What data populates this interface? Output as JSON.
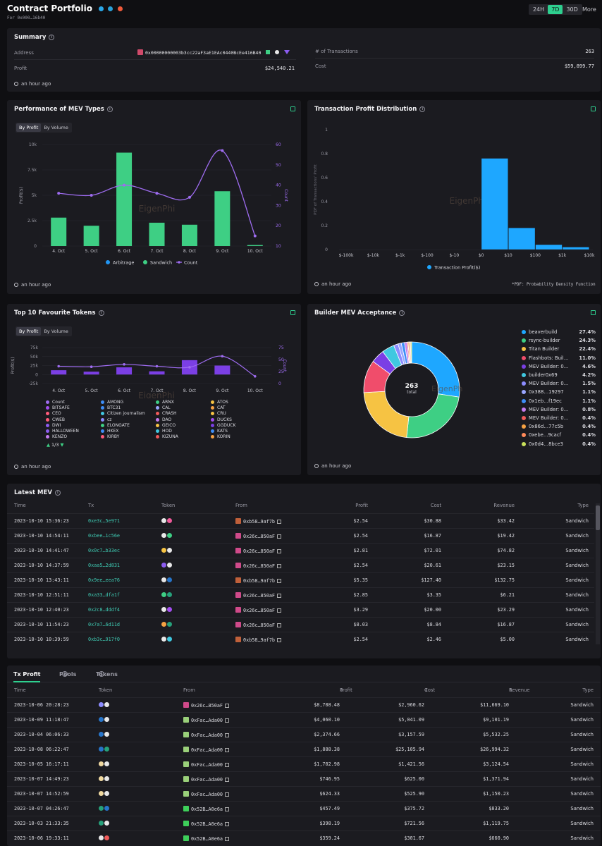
{
  "header": {
    "title": "Contract Portfolio",
    "subtitle": "For 0x000…16b40",
    "ranges": [
      "24H",
      "7D",
      "30D"
    ],
    "active_range": "7D",
    "more": "More"
  },
  "summary": {
    "title": "Summary",
    "address_label": "Address",
    "address_value": "0x00000000003b3cc22aF3aE1EAc0440BcEe416B40",
    "profit_label": "Profit",
    "profit_value": "$24,540.21",
    "tx_label": "# of Transactions",
    "tx_value": "263",
    "cost_label": "Cost",
    "cost_value": "$59,899.77",
    "ago": "an hour ago"
  },
  "mev_types": {
    "title": "Performance of MEV Types",
    "tabs": [
      "By Profit",
      "By Volume"
    ],
    "ago": "an hour ago",
    "watermark": "EigenPhi",
    "chart_data": {
      "type": "bar",
      "categories": [
        "4. Oct",
        "5. Oct",
        "6. Oct",
        "7. Oct",
        "8. Oct",
        "9. Oct",
        "10. Oct"
      ],
      "ylabel": "Profit($)",
      "y2label": "Count",
      "yticks": [
        "0",
        "2.5k",
        "5k",
        "7.5k",
        "10k"
      ],
      "ylim": [
        0,
        10000
      ],
      "y2ticks": [
        "10",
        "20",
        "30",
        "40",
        "50",
        "60"
      ],
      "y2lim": [
        10,
        60
      ],
      "series": [
        {
          "name": "Arbitrage",
          "color": "#2196f3",
          "values": [
            0,
            0,
            0,
            0,
            0,
            0,
            0
          ]
        },
        {
          "name": "Sandwich",
          "color": "#3ecf84",
          "values": [
            2800,
            2000,
            9200,
            2300,
            2100,
            5400,
            100
          ]
        },
        {
          "name": "Count",
          "color": "#9e6cf0",
          "values": [
            36,
            35,
            40,
            36,
            34,
            57,
            15
          ]
        }
      ]
    }
  },
  "tx_dist": {
    "title": "Transaction Profit Distribution",
    "ago": "an hour ago",
    "footnote": "*PDF: Probability Density Function",
    "watermark": "EigenPhi",
    "chart_data": {
      "type": "bar",
      "categories": [
        "$-100k",
        "$-10k",
        "$-1k",
        "$-100",
        "$-10",
        "$0",
        "$10",
        "$100",
        "$1k",
        "$10k"
      ],
      "ylabel": "PDF of Transactions' Profit",
      "yticks": [
        "0",
        "0.2",
        "0.4",
        "0.6",
        "0.8",
        "1"
      ],
      "ylim": [
        0,
        1
      ],
      "series": [
        {
          "name": "Transaction Profit($)",
          "color": "#1ea7ff",
          "values": [
            0,
            0,
            0,
            0,
            0,
            0.76,
            0.18,
            0.04,
            0.02,
            0
          ]
        }
      ]
    }
  },
  "tokens": {
    "title": "Top 10 Favourite Tokens",
    "tabs": [
      "By Profit",
      "By Volume"
    ],
    "ago": "an hour ago",
    "pager": "1/3",
    "watermark": "EigenPhi",
    "chart_data": {
      "type": "bar",
      "categories": [
        "4. Oct",
        "5. Oct",
        "6. Oct",
        "7. Oct",
        "8. Oct",
        "9. Oct",
        "10. Oct"
      ],
      "ylabel": "Profit($)",
      "y2label": "Count",
      "yticks": [
        "-25k",
        "0",
        "25k",
        "50k",
        "75k"
      ],
      "ylim": [
        -25000,
        75000
      ],
      "y2ticks": [
        "0",
        "25",
        "50",
        "75"
      ],
      "y2lim": [
        0,
        75
      ],
      "series": [
        {
          "name": "Count",
          "color": "#9e6cf0",
          "values": [
            36,
            35,
            40,
            36,
            34,
            57,
            15
          ]
        },
        {
          "name": "Profit",
          "color": "#7b3fe4",
          "values": [
            12000,
            8000,
            20000,
            9000,
            40000,
            25000,
            0
          ]
        }
      ]
    },
    "legend": [
      {
        "name": "Count",
        "color": "#9e6cf0"
      },
      {
        "name": "AMONG",
        "color": "#3e8ef7"
      },
      {
        "name": "ARNX",
        "color": "#3ecf84"
      },
      {
        "name": "ATOS",
        "color": "#f6c343"
      },
      {
        "name": "BITSAFE",
        "color": "#a34ef0"
      },
      {
        "name": "BTC31",
        "color": "#3e8ef7"
      },
      {
        "name": "CAL",
        "color": "#9aa6ff"
      },
      {
        "name": "CAT",
        "color": "#f6a243"
      },
      {
        "name": "CEO",
        "color": "#ff5b7a"
      },
      {
        "name": "Citizen journalism",
        "color": "#40c8e0"
      },
      {
        "name": "CRASH",
        "color": "#f05a5a"
      },
      {
        "name": "CRU",
        "color": "#f6c343"
      },
      {
        "name": "CWEB",
        "color": "#ff5b7a"
      },
      {
        "name": "cz",
        "color": "#8c8cff"
      },
      {
        "name": "DAO",
        "color": "#c57cf0"
      },
      {
        "name": "DUCKS",
        "color": "#a34ef0"
      },
      {
        "name": "DWI",
        "color": "#8c5cf0"
      },
      {
        "name": "ELONGATE",
        "color": "#3ecf84"
      },
      {
        "name": "GEICO",
        "color": "#f6c343"
      },
      {
        "name": "GGDUCK",
        "color": "#7b3fe4"
      },
      {
        "name": "HALLOWEEN",
        "color": "#8c5cf0"
      },
      {
        "name": "HKEX",
        "color": "#3e8ef7"
      },
      {
        "name": "HOD",
        "color": "#40c8e0"
      },
      {
        "name": "KATS",
        "color": "#3e8ef7"
      },
      {
        "name": "KENZO",
        "color": "#c57cf0"
      },
      {
        "name": "KIRBY",
        "color": "#ff5b7a"
      },
      {
        "name": "KIZUNA",
        "color": "#f05a5a"
      },
      {
        "name": "KORIN",
        "color": "#f6a243"
      }
    ]
  },
  "builders": {
    "title": "Builder MEV Acceptance",
    "ago": "an hour ago",
    "total_value": "263",
    "total_label": "total",
    "watermark": "EigenPhi",
    "chart_data": {
      "type": "pie",
      "labels": [
        "beaverbuild",
        "rsync-builder",
        "Titan Builder",
        "Flashbots: Buil…",
        "MEV Builder: 0…",
        "builder0x69",
        "MEV Builder: 0…",
        "0x388…19297",
        "0x1eb…f19ec",
        "MEV Builder: 0…",
        "MEV Builder: 0…",
        "0x86d…77c5b",
        "0xebe…9cacf",
        "0x0d4…8bce3"
      ],
      "values": [
        27.4,
        24.3,
        22.4,
        11.0,
        4.6,
        4.2,
        1.5,
        1.1,
        1.1,
        0.8,
        0.4,
        0.4,
        0.4,
        0.4
      ],
      "display": [
        "27.4%",
        "24.3%",
        "22.4%",
        "11.0%",
        "4.6%",
        "4.2%",
        "1.5%",
        "1.1%",
        "1.1%",
        "0.8%",
        "0.4%",
        "0.4%",
        "0.4%",
        "0.4%"
      ],
      "colors": [
        "#1ea7ff",
        "#3ecf84",
        "#f6c343",
        "#f04d6b",
        "#7b3fe4",
        "#40c8e0",
        "#8c8cff",
        "#9aa6ff",
        "#3e8ef7",
        "#c57cf0",
        "#f05a5a",
        "#f6a243",
        "#ff8a5a",
        "#c8e05a"
      ]
    }
  },
  "latest": {
    "title": "Latest MEV",
    "columns": [
      "Time",
      "Tx",
      "Token",
      "From",
      "Profit",
      "Cost",
      "Revenue",
      "Type"
    ],
    "rows": [
      {
        "time": "2023-10-10 15:36:23",
        "tx": "0xe3c…5e971",
        "from": "0xb58…9af7b",
        "profit": "$2.54",
        "cost": "$30.88",
        "revenue": "$33.42",
        "type": "Sandwich",
        "t1": "#e8e8e8",
        "t2": "#f05a9a",
        "av": "#c0603a"
      },
      {
        "time": "2023-10-10 14:54:11",
        "tx": "0xbee…1c56e",
        "from": "0x26c…850aF",
        "profit": "$2.54",
        "cost": "$16.87",
        "revenue": "$19.42",
        "type": "Sandwich",
        "t1": "#e8e8e8",
        "t2": "#3ecf84",
        "av": "#d04a8a"
      },
      {
        "time": "2023-10-10 14:41:47",
        "tx": "0x0c7…b33ec",
        "from": "0x26c…850aF",
        "profit": "$2.81",
        "cost": "$72.01",
        "revenue": "$74.82",
        "type": "Sandwich",
        "t1": "#f6c343",
        "t2": "#e8e8e8",
        "av": "#d04a8a"
      },
      {
        "time": "2023-10-10 14:37:59",
        "tx": "0xaa5…2d831",
        "from": "0x26c…850aF",
        "profit": "$2.54",
        "cost": "$20.61",
        "revenue": "$23.15",
        "type": "Sandwich",
        "t1": "#8c5cf0",
        "t2": "#e8e8e8",
        "av": "#d04a8a"
      },
      {
        "time": "2023-10-10 13:43:11",
        "tx": "0x9ee…eea76",
        "from": "0xb58…9af7b",
        "profit": "$5.35",
        "cost": "$127.40",
        "revenue": "$132.75",
        "type": "Sandwich",
        "t1": "#e8e8e8",
        "t2": "#2775ca",
        "av": "#c0603a"
      },
      {
        "time": "2023-10-10 12:51:11",
        "tx": "0xa33…dfa1f",
        "from": "0x26c…850aF",
        "profit": "$2.85",
        "cost": "$3.35",
        "revenue": "$6.21",
        "type": "Sandwich",
        "t1": "#3ecf84",
        "t2": "#26a17b",
        "av": "#d04a8a"
      },
      {
        "time": "2023-10-10 12:40:23",
        "tx": "0x2c8…dddf4",
        "from": "0x26c…850aF",
        "profit": "$3.29",
        "cost": "$20.00",
        "revenue": "$23.29",
        "type": "Sandwich",
        "t1": "#e8e8e8",
        "t2": "#a34ef0",
        "av": "#d04a8a"
      },
      {
        "time": "2023-10-10 11:54:23",
        "tx": "0x7a7…6d11d",
        "from": "0x26c…850aF",
        "profit": "$8.03",
        "cost": "$8.84",
        "revenue": "$16.87",
        "type": "Sandwich",
        "t1": "#f6a243",
        "t2": "#26a17b",
        "av": "#d04a8a"
      },
      {
        "time": "2023-10-10 10:39:59",
        "tx": "0xb3c…917f0",
        "from": "0xb58…9af7b",
        "profit": "$2.54",
        "cost": "$2.46",
        "revenue": "$5.00",
        "type": "Sandwich",
        "t1": "#e8e8e8",
        "t2": "#40c8e0",
        "av": "#c0603a"
      }
    ]
  },
  "bottom": {
    "tabs": [
      "Tx Profit",
      "Pools",
      "Tokens"
    ],
    "columns": [
      "Time",
      "Token",
      "From",
      "Profit",
      "Cost",
      "Revenue",
      "Type"
    ],
    "rows": [
      {
        "time": "2023-10-06 20:28:23",
        "from": "0x26c…850aF",
        "profit": "$8,708.48",
        "cost": "$2,960.62",
        "revenue": "$11,669.10",
        "type": "Sandwich",
        "t1": "#8c8cff",
        "t2": "#e8e8e8",
        "av": "#d04a8a"
      },
      {
        "time": "2023-10-09 11:18:47",
        "from": "0xFac…Ada00",
        "profit": "$4,060.10",
        "cost": "$5,041.09",
        "revenue": "$9,101.19",
        "type": "Sandwich",
        "t1": "#2775ca",
        "t2": "#e8e8e8",
        "av": "#9ad07a"
      },
      {
        "time": "2023-10-04 06:06:33",
        "from": "0xFac…Ada00",
        "profit": "$2,374.66",
        "cost": "$3,157.59",
        "revenue": "$5,532.25",
        "type": "Sandwich",
        "t1": "#2775ca",
        "t2": "#e8e8e8",
        "av": "#9ad07a"
      },
      {
        "time": "2023-10-08 06:22:47",
        "from": "0xFac…Ada00",
        "profit": "$1,888.38",
        "cost": "$25,105.94",
        "revenue": "$26,994.32",
        "type": "Sandwich",
        "t1": "#2775ca",
        "t2": "#26a17b",
        "av": "#9ad07a"
      },
      {
        "time": "2023-10-05 16:17:11",
        "from": "0xFac…Ada00",
        "profit": "$1,702.98",
        "cost": "$1,421.56",
        "revenue": "$3,124.54",
        "type": "Sandwich",
        "t1": "#f0d9a0",
        "t2": "#e8e8e8",
        "av": "#9ad07a"
      },
      {
        "time": "2023-10-07 14:49:23",
        "from": "0xFac…Ada00",
        "profit": "$746.95",
        "cost": "$625.00",
        "revenue": "$1,371.94",
        "type": "Sandwich",
        "t1": "#f0d9a0",
        "t2": "#e8e8e8",
        "av": "#9ad07a"
      },
      {
        "time": "2023-10-07 14:52:59",
        "from": "0xFac…Ada00",
        "profit": "$624.33",
        "cost": "$525.90",
        "revenue": "$1,150.23",
        "type": "Sandwich",
        "t1": "#f0d9a0",
        "t2": "#e8e8e8",
        "av": "#9ad07a"
      },
      {
        "time": "2023-10-07 04:26:47",
        "from": "0x52B…A0e6a",
        "profit": "$457.49",
        "cost": "$375.72",
        "revenue": "$833.20",
        "type": "Sandwich",
        "t1": "#26a17b",
        "t2": "#2775ca",
        "av": "#3ecf5a"
      },
      {
        "time": "2023-10-03 21:33:35",
        "from": "0x52B…A0e6a",
        "profit": "$398.19",
        "cost": "$721.56",
        "revenue": "$1,119.75",
        "type": "Sandwich",
        "t1": "#26a17b",
        "t2": "#e8e8e8",
        "av": "#3ecf5a"
      },
      {
        "time": "2023-10-06 19:33:11",
        "from": "0x52B…A0e6a",
        "profit": "$359.24",
        "cost": "$301.67",
        "revenue": "$660.90",
        "type": "Sandwich",
        "t1": "#e8e8e8",
        "t2": "#f05a5a",
        "av": "#3ecf5a"
      }
    ]
  },
  "colors": {
    "accent": "#2ecf8f",
    "purple": "#9e6cf0",
    "card": "#1b1b20"
  }
}
